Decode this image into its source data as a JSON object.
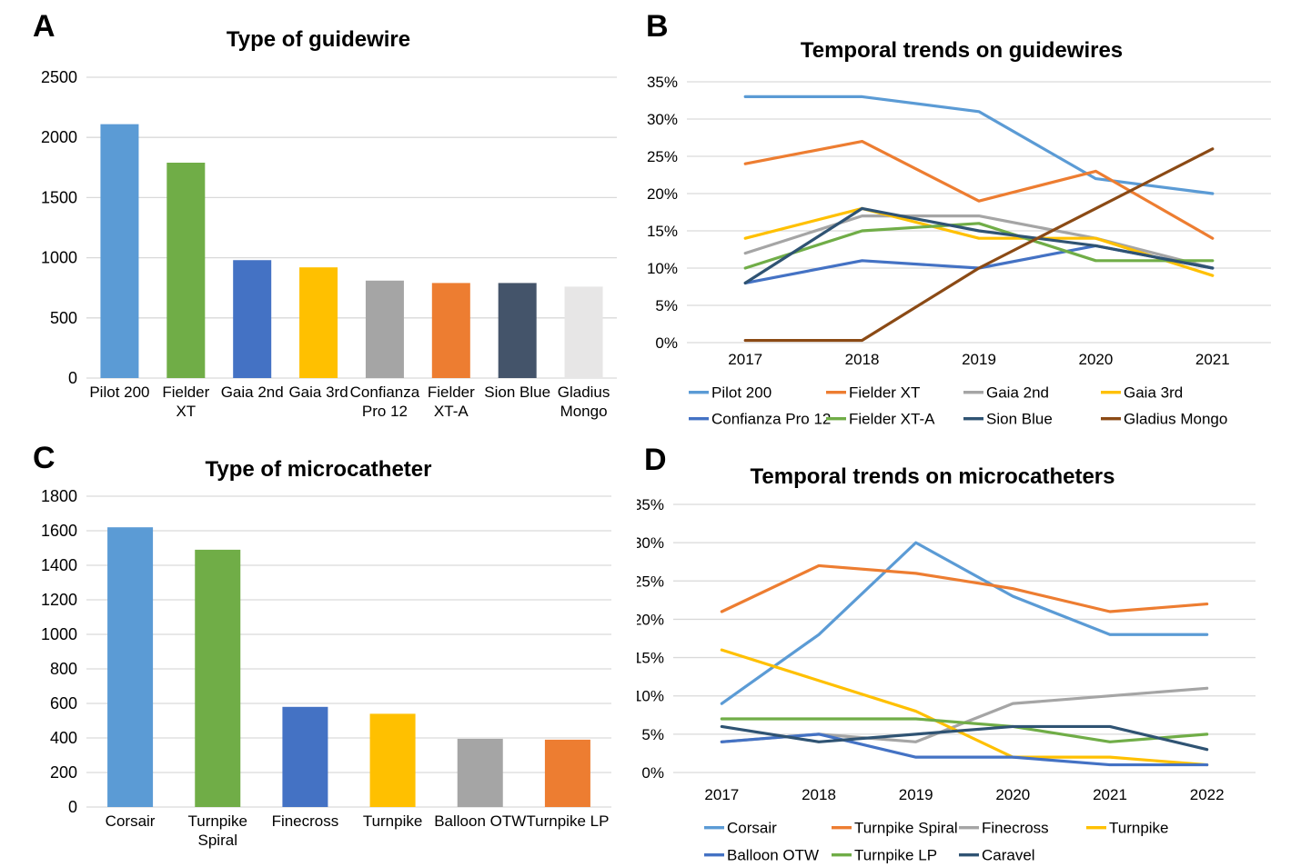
{
  "styles": {
    "background": "#FFFFFF",
    "gridline": "#D9D9D9",
    "text": "#000000"
  },
  "chart_data": [
    {
      "panel": "A",
      "type": "bar",
      "title": "Type of guidewire",
      "categories": [
        "Pilot 200",
        "Fielder\nXT",
        "Gaia 2nd",
        "Gaia 3rd",
        "Confianza\nPro 12",
        "Fielder\nXT-A",
        "Sion Blue",
        "Gladius\nMongo"
      ],
      "values": [
        2110,
        1790,
        980,
        920,
        810,
        790,
        790,
        760
      ],
      "bar_colors": [
        "#5B9BD5",
        "#70AD47",
        "#4472C4",
        "#FFC000",
        "#A5A5A5",
        "#ED7D31",
        "#44546A",
        "#E7E6E6"
      ],
      "ylim": [
        0,
        2500
      ],
      "ystep": 500,
      "yformat": "",
      "grid": true,
      "legend_position": "none"
    },
    {
      "panel": "B",
      "type": "line",
      "title": "Temporal trends on guidewires",
      "x": [
        "2017",
        "2018",
        "2019",
        "2020",
        "2021"
      ],
      "series": [
        {
          "name": "Pilot 200",
          "color": "#5B9BD5",
          "values": [
            33,
            33,
            31,
            22,
            20
          ]
        },
        {
          "name": "Fielder XT",
          "color": "#ED7D31",
          "values": [
            24,
            27,
            19,
            23,
            14
          ]
        },
        {
          "name": "Gaia 2nd",
          "color": "#A5A5A5",
          "values": [
            12,
            17,
            17,
            14,
            10
          ]
        },
        {
          "name": "Gaia 3rd",
          "color": "#FFC000",
          "values": [
            14,
            18,
            14,
            14,
            9
          ]
        },
        {
          "name": "Confianza Pro 12",
          "color": "#4472C4",
          "values": [
            8,
            11,
            10,
            13,
            10
          ]
        },
        {
          "name": "Fielder XT-A",
          "color": "#70AD47",
          "values": [
            10,
            15,
            16,
            11,
            11
          ]
        },
        {
          "name": "Sion Blue",
          "color": "#2F5373",
          "values": [
            8,
            18,
            15,
            13,
            10
          ]
        },
        {
          "name": "Gladius Mongo",
          "color": "#8B4A15",
          "values": [
            0.3,
            0.3,
            10,
            18,
            26
          ]
        }
      ],
      "ylim": [
        0,
        35
      ],
      "ystep": 5,
      "yformat": "%",
      "grid": true,
      "legend_position": "bottom",
      "legend_columns": 4
    },
    {
      "panel": "C",
      "type": "bar",
      "title": "Type of microcatheter",
      "categories": [
        "Corsair",
        "Turnpike\nSpiral",
        "Finecross",
        "Turnpike",
        "Balloon OTW",
        "Turnpike LP"
      ],
      "values": [
        1620,
        1490,
        580,
        540,
        395,
        390
      ],
      "bar_colors": [
        "#5B9BD5",
        "#70AD47",
        "#4472C4",
        "#FFC000",
        "#A5A5A5",
        "#ED7D31"
      ],
      "ylim": [
        0,
        1800
      ],
      "ystep": 200,
      "yformat": "",
      "grid": true,
      "legend_position": "none"
    },
    {
      "panel": "D",
      "type": "line",
      "title": "Temporal trends on microcatheters",
      "x": [
        "2017",
        "2018",
        "2019",
        "2020",
        "2021",
        "2022"
      ],
      "series": [
        {
          "name": "Corsair",
          "color": "#5B9BD5",
          "values": [
            9,
            18,
            30,
            23,
            18,
            18
          ]
        },
        {
          "name": "Turnpike Spiral",
          "color": "#ED7D31",
          "values": [
            21,
            27,
            26,
            24,
            21,
            22
          ]
        },
        {
          "name": "Finecross",
          "color": "#A5A5A5",
          "values": [
            4,
            5,
            4,
            9,
            10,
            11
          ]
        },
        {
          "name": "Turnpike",
          "color": "#FFC000",
          "values": [
            16,
            12,
            8,
            2,
            2,
            1
          ]
        },
        {
          "name": "Balloon OTW",
          "color": "#4472C4",
          "values": [
            4,
            5,
            2,
            2,
            1,
            1
          ]
        },
        {
          "name": "Turnpike LP",
          "color": "#70AD47",
          "values": [
            7,
            7,
            7,
            6,
            4,
            5
          ]
        },
        {
          "name": "Caravel",
          "color": "#2F5373",
          "values": [
            6,
            4,
            5,
            6,
            6,
            3
          ]
        }
      ],
      "ylim": [
        0,
        35
      ],
      "ystep": 5,
      "yformat": "%",
      "grid": true,
      "legend_position": "bottom",
      "legend_columns": 4
    }
  ]
}
